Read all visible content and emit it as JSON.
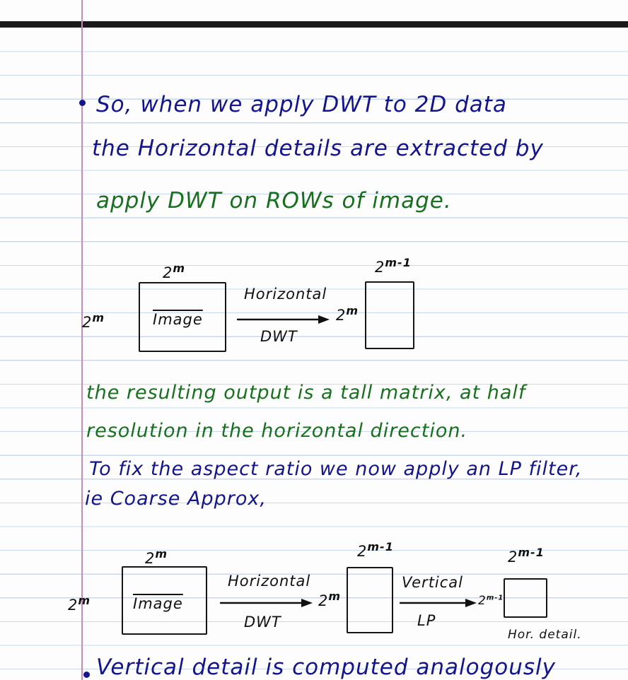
{
  "notes": {
    "line1": "So, when we apply DWT to 2D data",
    "line2": "the Horizontal details are extracted by",
    "line3": "apply DWT on ROWs of image.",
    "diagram1": {
      "left_exp": "m",
      "top_exp": "m",
      "base": "2",
      "box_label": "Image",
      "arrow_top": "Horizontal",
      "arrow_bottom": "DWT",
      "out_left_exp": "m",
      "out_top_exp": "m-1"
    },
    "para1": "the resulting output is a tall matrix, at half",
    "para2": "resolution in the horizontal direction.",
    "para3": "To fix the aspect ratio we now apply an LP filter,",
    "para4": "ie Coarse Approx,",
    "diagram2": {
      "left_exp": "m",
      "top_exp": "m",
      "base": "2",
      "box_label": "Image",
      "arrow1_top": "Horizontal",
      "arrow1_bottom": "DWT",
      "mid_left_exp": "m",
      "mid_top_exp": "m-1",
      "arrow2_top": "Vertical",
      "arrow2_bottom": "LP",
      "out_left_exp": "m-1",
      "out_top_exp": "m-1",
      "caption": "Hor. detail."
    },
    "line_last": "Vertical detail is computed analogously"
  },
  "colors": {
    "blue_ink": "#14148c",
    "green_ink": "#17701e",
    "black_ink": "#111111",
    "rule": "#c5d8ee",
    "margin": "#c98ab8"
  }
}
